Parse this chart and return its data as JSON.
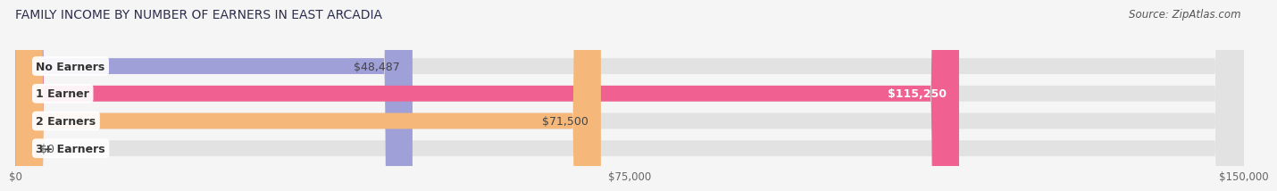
{
  "title": "FAMILY INCOME BY NUMBER OF EARNERS IN EAST ARCADIA",
  "source": "Source: ZipAtlas.com",
  "categories": [
    "No Earners",
    "1 Earner",
    "2 Earners",
    "3+ Earners"
  ],
  "values": [
    48487,
    115250,
    71500,
    0
  ],
  "bar_colors": [
    "#a0a0d8",
    "#f06090",
    "#f5b87a",
    "#f5a8a8"
  ],
  "label_colors": [
    "#444444",
    "#ffffff",
    "#444444",
    "#444444"
  ],
  "value_labels": [
    "$48,487",
    "$115,250",
    "$71,500",
    "$0"
  ],
  "xmax": 150000,
  "xticks": [
    0,
    75000,
    150000
  ],
  "xticklabels": [
    "$0",
    "$75,000",
    "$150,000"
  ],
  "background_color": "#f5f5f5",
  "bar_bg_color": "#e2e2e2",
  "title_fontsize": 10,
  "source_fontsize": 8.5,
  "label_fontsize": 9,
  "value_fontsize": 9
}
